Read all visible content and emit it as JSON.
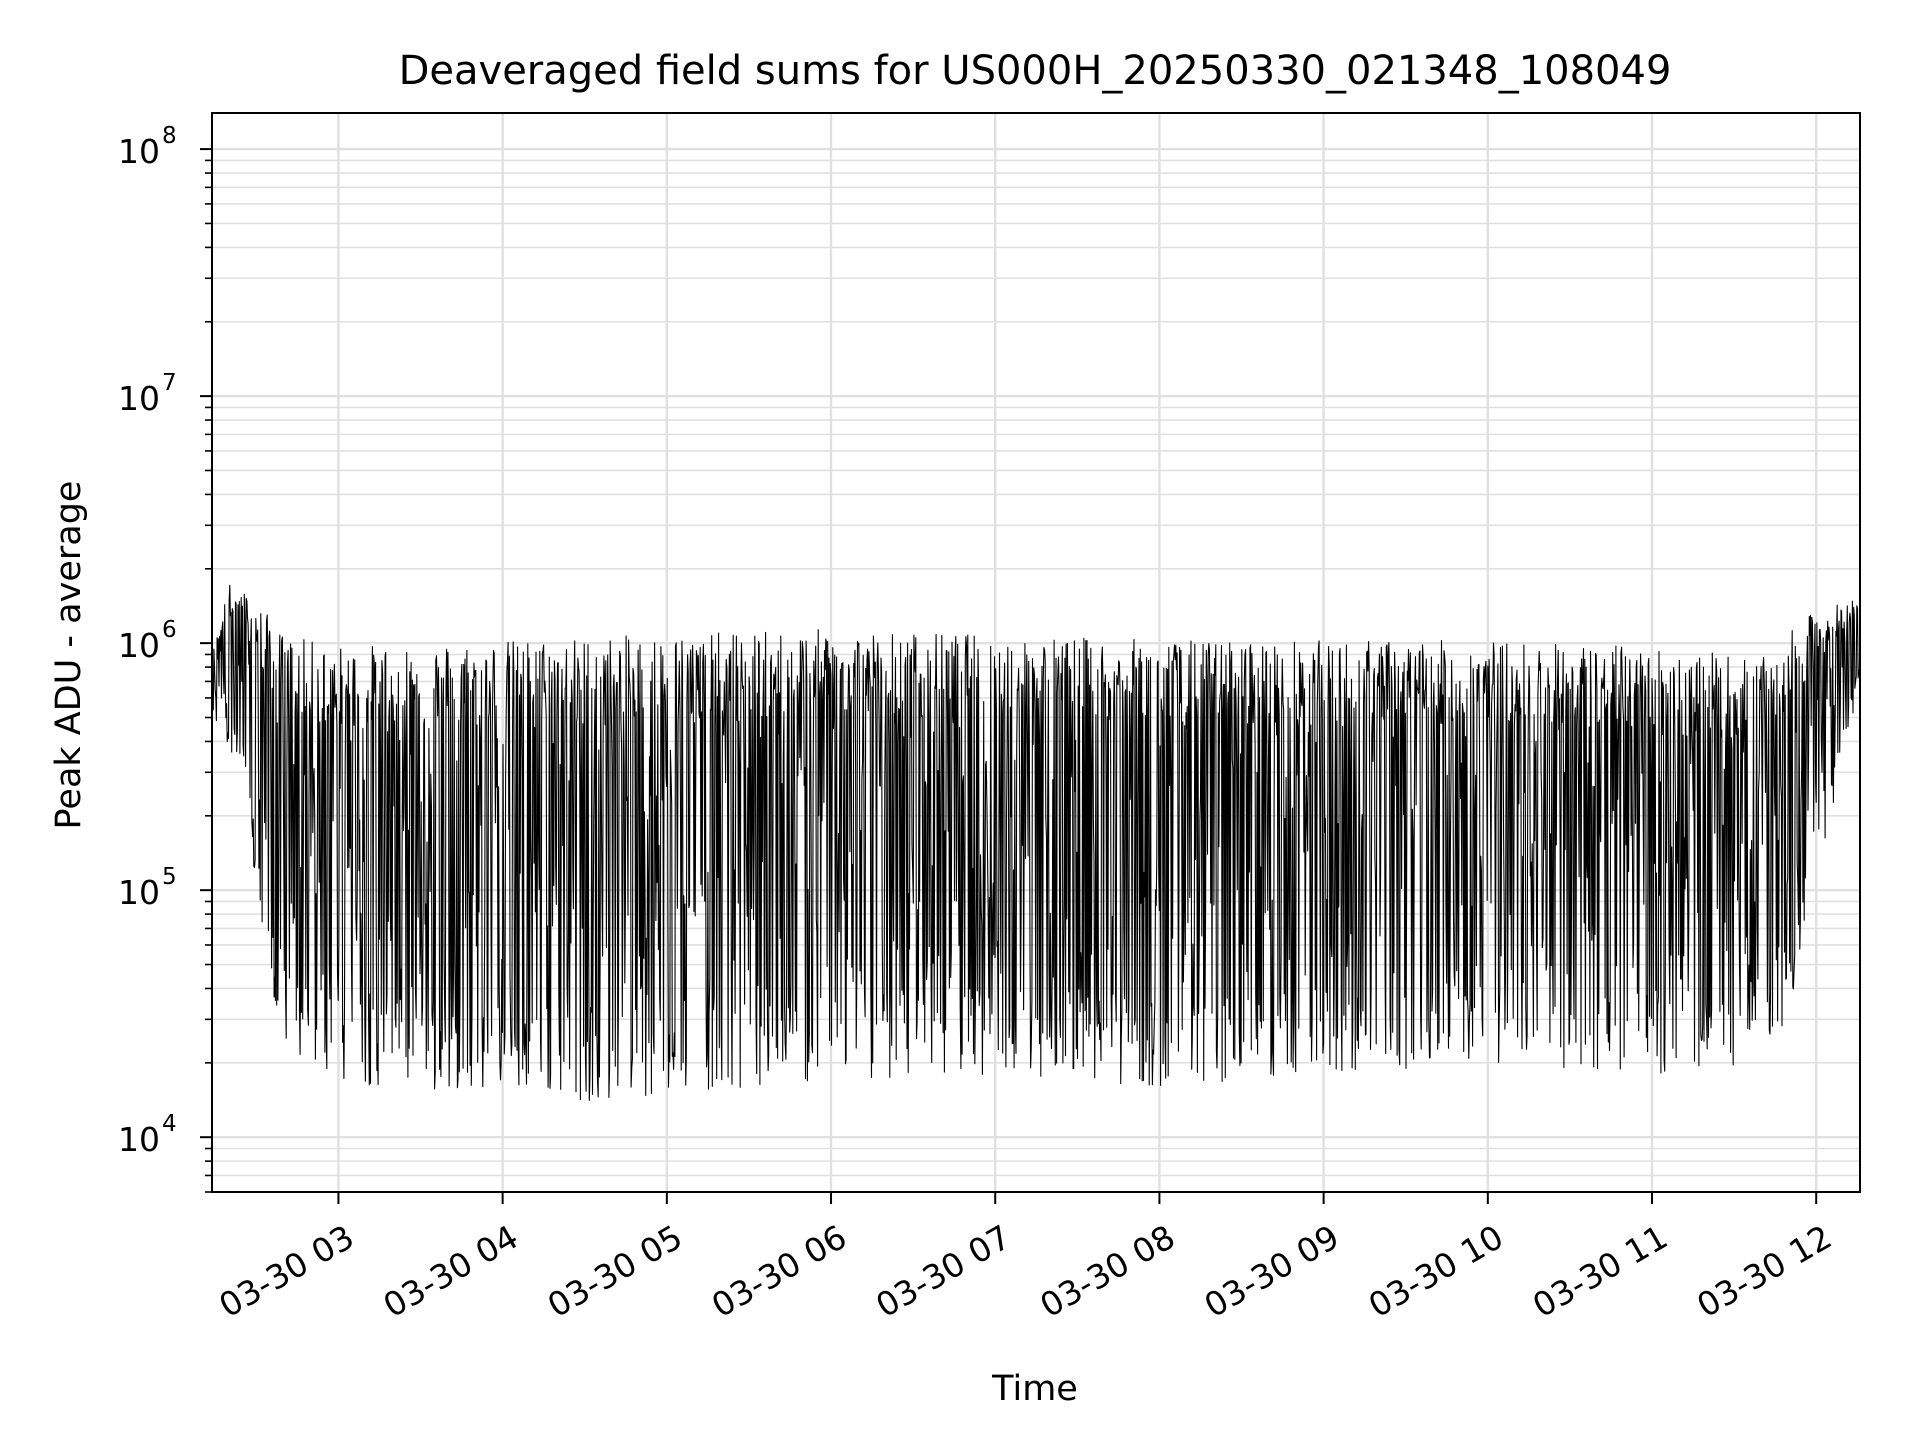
{
  "chart_data": {
    "type": "line",
    "title": "Deaveraged field sums for US000H_20250330_021348_108049",
    "xlabel": "Time",
    "ylabel": "Peak ADU - average",
    "yscale": "log",
    "grid": true,
    "line_color": "#000000",
    "grid_color": "#e0e0e0",
    "xlim": [
      "2025-03-30 02:13:48",
      "2025-03-30 12:16:00"
    ],
    "ylim": [
      6000,
      140000000
    ],
    "x_ticks": [
      {
        "value": "2025-03-30 03:00",
        "label": "03-30 03"
      },
      {
        "value": "2025-03-30 04:00",
        "label": "03-30 04"
      },
      {
        "value": "2025-03-30 05:00",
        "label": "03-30 05"
      },
      {
        "value": "2025-03-30 06:00",
        "label": "03-30 06"
      },
      {
        "value": "2025-03-30 07:00",
        "label": "03-30 07"
      },
      {
        "value": "2025-03-30 08:00",
        "label": "03-30 08"
      },
      {
        "value": "2025-03-30 09:00",
        "label": "03-30 09"
      },
      {
        "value": "2025-03-30 10:00",
        "label": "03-30 10"
      },
      {
        "value": "2025-03-30 11:00",
        "label": "03-30 11"
      },
      {
        "value": "2025-03-30 12:00",
        "label": "03-30 12"
      }
    ],
    "y_ticks": [
      {
        "value": 10000,
        "base": "10",
        "exp": "4"
      },
      {
        "value": 100000,
        "base": "10",
        "exp": "5"
      },
      {
        "value": 1000000,
        "base": "10",
        "exp": "6"
      },
      {
        "value": 10000000,
        "base": "10",
        "exp": "7"
      },
      {
        "value": 100000000,
        "base": "10",
        "exp": "8"
      }
    ],
    "envelope": {
      "note_upper": [
        [
          "2025-03-30 02:14",
          900000
        ],
        [
          "2025-03-30 02:20",
          1700000
        ],
        [
          "2025-03-30 02:28",
          1500000
        ],
        [
          "2025-03-30 02:40",
          1000000
        ],
        [
          "2025-03-30 03:00",
          900000
        ],
        [
          "2025-03-30 04:00",
          950000
        ],
        [
          "2025-03-30 05:00",
          1000000
        ],
        [
          "2025-03-30 06:00",
          1050000
        ],
        [
          "2025-03-30 07:00",
          1000000
        ],
        [
          "2025-03-30 08:00",
          950000
        ],
        [
          "2025-03-30 09:00",
          950000
        ],
        [
          "2025-03-30 10:00",
          950000
        ],
        [
          "2025-03-30 11:00",
          900000
        ],
        [
          "2025-03-30 11:40",
          800000
        ],
        [
          "2025-03-30 12:00",
          1300000
        ],
        [
          "2025-03-30 12:16",
          1500000
        ]
      ],
      "lower": [
        [
          "2025-03-30 02:14",
          500000
        ],
        [
          "2025-03-30 02:25",
          300000
        ],
        [
          "2025-03-30 02:35",
          30000
        ],
        [
          "2025-03-30 02:45",
          20000
        ],
        [
          "2025-03-30 03:00",
          17000
        ],
        [
          "2025-03-30 03:30",
          15000
        ],
        [
          "2025-03-30 04:00",
          16000
        ],
        [
          "2025-03-30 04:30",
          14000
        ],
        [
          "2025-03-30 05:00",
          15000
        ],
        [
          "2025-03-30 06:00",
          17000
        ],
        [
          "2025-03-30 07:00",
          18000
        ],
        [
          "2025-03-30 08:00",
          16000
        ],
        [
          "2025-03-30 09:00",
          18000
        ],
        [
          "2025-03-30 10:00",
          20000
        ],
        [
          "2025-03-30 11:00",
          18000
        ],
        [
          "2025-03-30 11:20",
          14000
        ],
        [
          "2025-03-30 11:50",
          30000
        ],
        [
          "2025-03-30 12:00",
          100000
        ],
        [
          "2025-03-30 12:16",
          700000
        ]
      ]
    }
  }
}
